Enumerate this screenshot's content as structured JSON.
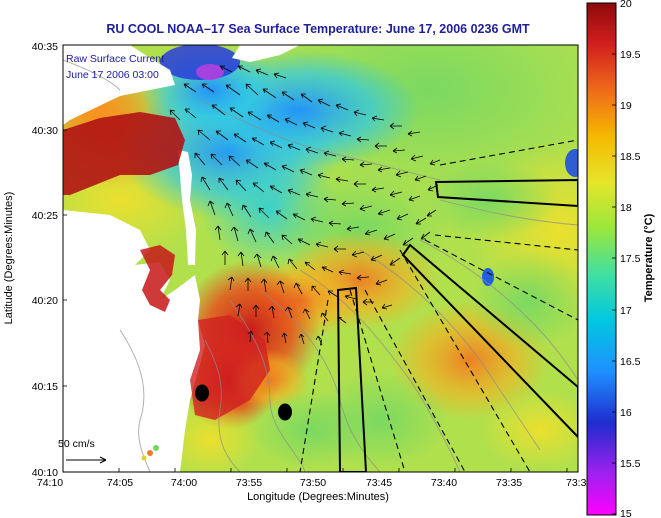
{
  "title": "RU COOL  NOAA–17  Sea Surface Temperature:  June 17, 2006 0236 GMT",
  "legend": {
    "line1": "Raw Surface Current",
    "line2": "June 17 2006 03:00"
  },
  "scale_label": "50 cm/s",
  "axes": {
    "xlabel": "Longitude (Degrees:Minutes)",
    "ylabel": "Latitude (Degrees:Minutes)",
    "x_ticks": [
      "74:10",
      "74:05",
      "74:00",
      "73:55",
      "73:50",
      "73:45",
      "73:40",
      "73:35",
      "73:3"
    ],
    "y_ticks": [
      "40:35",
      "40:30",
      "40:25",
      "40:20",
      "40:15",
      "40:10"
    ]
  },
  "colorbar": {
    "label": "Temperature (°C)",
    "min": 15,
    "max": 20,
    "ticks": [
      "20",
      "19.5",
      "19",
      "18.5",
      "18",
      "17.5",
      "17",
      "16.5",
      "16",
      "15.5",
      "15"
    ],
    "colors": [
      "#ff00ff",
      "#a020f0",
      "#1e2ccf",
      "#1e90ff",
      "#00c8e0",
      "#40e0a0",
      "#9ae63c",
      "#e6e62a",
      "#f5b800",
      "#ef6a1a",
      "#d21e1e",
      "#8e0a0a"
    ]
  },
  "markers": [
    {
      "name": "buoy-marker-west"
    },
    {
      "name": "buoy-marker-east"
    }
  ]
}
